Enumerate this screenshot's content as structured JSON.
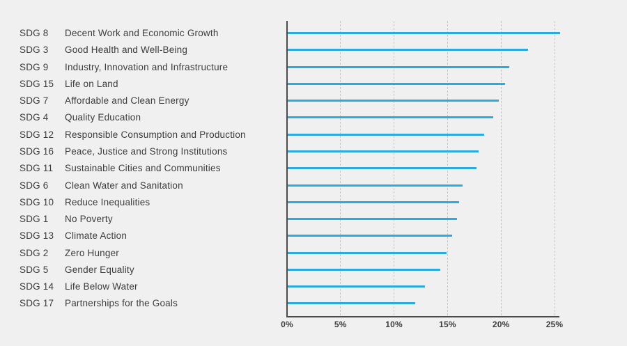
{
  "chart_data": {
    "type": "bar",
    "orientation": "horizontal",
    "unit": "%",
    "categories": [
      "SDG 8",
      "SDG 3",
      "SDG 9",
      "SDG 15",
      "SDG 7",
      "SDG 4",
      "SDG 12",
      "SDG 16",
      "SDG 11",
      "SDG 6",
      "SDG 10",
      "SDG 1",
      "SDG 13",
      "SDG 2",
      "SDG 5",
      "SDG 14",
      "SDG 17"
    ],
    "category_names": [
      "Decent Work and Economic Growth",
      "Good Health and Well-Being",
      "Industry, Innovation and Infrastructure",
      "Life on Land",
      "Affordable and Clean Energy",
      "Quality Education",
      "Responsible Consumption and Production",
      "Peace, Justice and Strong Institutions",
      "Sustainable Cities and Communities",
      "Clean Water and Sanitation",
      "Reduce Inequalities",
      "No Poverty",
      "Climate Action",
      "Zero Hunger",
      "Gender Equality",
      "Life Below Water",
      "Partnerships for the Goals"
    ],
    "values": [
      25.5,
      22.5,
      20.8,
      20.4,
      19.8,
      19.3,
      18.4,
      17.9,
      17.7,
      16.4,
      16.1,
      15.9,
      15.4,
      14.9,
      14.3,
      12.9,
      12.0
    ],
    "x_ticks": [
      "0%",
      "5%",
      "10%",
      "15%",
      "20%",
      "25%"
    ],
    "xlim": [
      0,
      25.5
    ],
    "grid": "vertical-dashed",
    "legend": "none",
    "colors": {
      "background": "#F0F0F0",
      "bar": "#29ABE2",
      "axis": "#4A4A4A",
      "gridline": "#C6C6C6",
      "text": "#3C3C3C"
    }
  }
}
